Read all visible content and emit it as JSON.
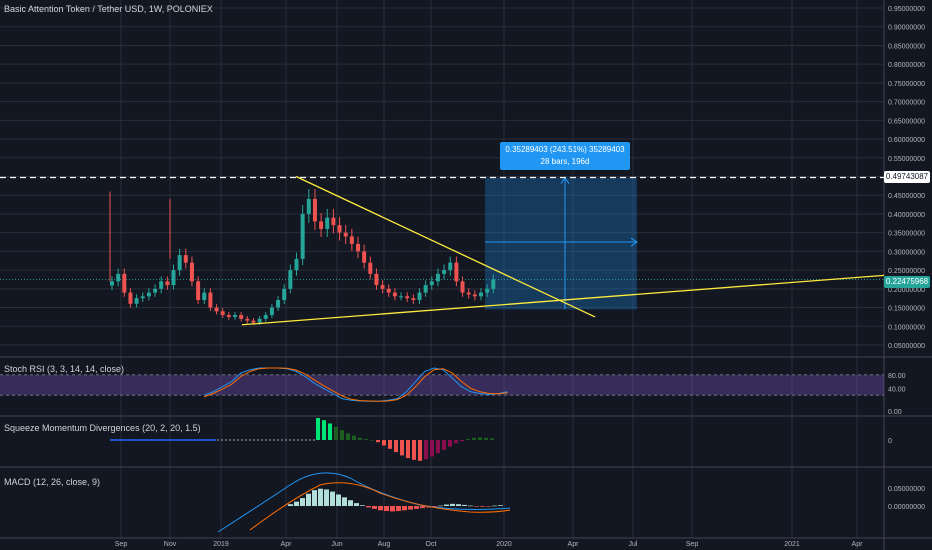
{
  "header": {
    "main_title": "Basic Attention Token / Tether USD, 1W, POLONIEX",
    "stoch_rsi_title": "Stoch RSI (3, 3, 14, 14, close)",
    "squeeze_title": "Squeeze Momentum Divergences (20, 2, 20, 1.5)",
    "macd_title": "MACD (12, 26, close, 9)"
  },
  "price_tags": {
    "resistance": "0.49743087",
    "last_price": "0.22475968"
  },
  "measure": {
    "line1": "0.35289403 (243.51%) 35289403",
    "line2": "28 bars, 196d"
  },
  "colors": {
    "background": "#131722",
    "up": "#26a69a",
    "down": "#ef5350",
    "trendline": "#ffeb3b",
    "measure": "#2196f3",
    "rsi_band": "#7e57c2",
    "rsi_k": "#2196f3",
    "rsi_d": "#ff6d00"
  },
  "chart_data": [
    {
      "type": "candlestick",
      "title": "Basic Attention Token / Tether USD, 1W, POLONIEX",
      "y_ticks": [
        "0.95000000",
        "0.90000000",
        "0.85000000",
        "0.80000000",
        "0.75000000",
        "0.70000000",
        "0.65000000",
        "0.60000000",
        "0.55000000",
        "0.50000000",
        "0.45000000",
        "0.40000000",
        "0.35000000",
        "0.30000000",
        "0.25000000",
        "0.20000000",
        "0.15000000",
        "0.10000000",
        "0.05000000"
      ],
      "x_ticks": [
        "Sep",
        "Nov",
        "2019",
        "Apr",
        "Jun",
        "Aug",
        "Oct",
        "2020",
        "Apr",
        "Jul",
        "Sep",
        "2021",
        "Apr"
      ],
      "closes": [
        0.22,
        0.24,
        0.19,
        0.16,
        0.175,
        0.18,
        0.19,
        0.2,
        0.22,
        0.21,
        0.25,
        0.29,
        0.27,
        0.22,
        0.17,
        0.19,
        0.15,
        0.14,
        0.13,
        0.125,
        0.13,
        0.12,
        0.115,
        0.11,
        0.12,
        0.13,
        0.15,
        0.17,
        0.2,
        0.25,
        0.28,
        0.4,
        0.44,
        0.38,
        0.36,
        0.39,
        0.37,
        0.35,
        0.34,
        0.32,
        0.3,
        0.27,
        0.24,
        0.21,
        0.2,
        0.19,
        0.18,
        0.18,
        0.175,
        0.17,
        0.19,
        0.21,
        0.22,
        0.24,
        0.25,
        0.27,
        0.22,
        0.19,
        0.185,
        0.18,
        0.19,
        0.2,
        0.225
      ],
      "resistance": 0.4974,
      "trendlines": [
        "descending from 0.50 (Apr 2019)",
        "ascending from 0.10 (Feb 2019)"
      ]
    },
    {
      "type": "line",
      "title": "Stoch RSI (3, 3, 14, 14, close)",
      "y_ticks": [
        "80.00",
        "40.00",
        "0.00"
      ],
      "series": [
        {
          "values": [
            20,
            30,
            45,
            60,
            85,
            95,
            100,
            100,
            100,
            98,
            90,
            75,
            55,
            40,
            25,
            10,
            5,
            3,
            2,
            2,
            5,
            10,
            30,
            60,
            90,
            100,
            95,
            70,
            45,
            30,
            25,
            22,
            25,
            30
          ]
        },
        {
          "values": [
            15,
            25,
            38,
            52,
            75,
            90,
            98,
            100,
            100,
            99,
            94,
            82,
            65,
            48,
            33,
            18,
            8,
            4,
            3,
            2,
            3,
            7,
            20,
            45,
            75,
            95,
            98,
            85,
            60,
            40,
            30,
            25,
            24,
            27
          ]
        }
      ]
    },
    {
      "type": "bar",
      "title": "Squeeze Momentum Divergences (20, 2, 20, 1.5)",
      "y_ticks": [
        "0"
      ],
      "values": [
        1.0,
        0.9,
        0.75,
        0.6,
        0.45,
        0.3,
        0.2,
        0.1,
        0.05,
        0,
        -0.1,
        -0.25,
        -0.4,
        -0.55,
        -0.7,
        -0.82,
        -0.9,
        -0.95,
        -0.88,
        -0.75,
        -0.6,
        -0.45,
        -0.3,
        -0.15,
        -0.05,
        0.05,
        0.1,
        0.12,
        0.1,
        0.08
      ]
    },
    {
      "type": "bar",
      "title": "MACD (12, 26, close, 9)",
      "y_ticks": [
        "0.05000000",
        "0.00000000"
      ],
      "values": [
        0.005,
        0.012,
        0.022,
        0.034,
        0.044,
        0.048,
        0.046,
        0.04,
        0.032,
        0.024,
        0.016,
        0.008,
        0.002,
        -0.004,
        -0.008,
        -0.012,
        -0.014,
        -0.015,
        -0.014,
        -0.012,
        -0.01,
        -0.008,
        -0.006,
        -0.004,
        -0.002,
        0.001,
        0.004,
        0.006,
        0.005,
        0.003,
        0.001,
        -0.001,
        -0.002,
        -0.001,
        0.001,
        0.002
      ]
    }
  ]
}
